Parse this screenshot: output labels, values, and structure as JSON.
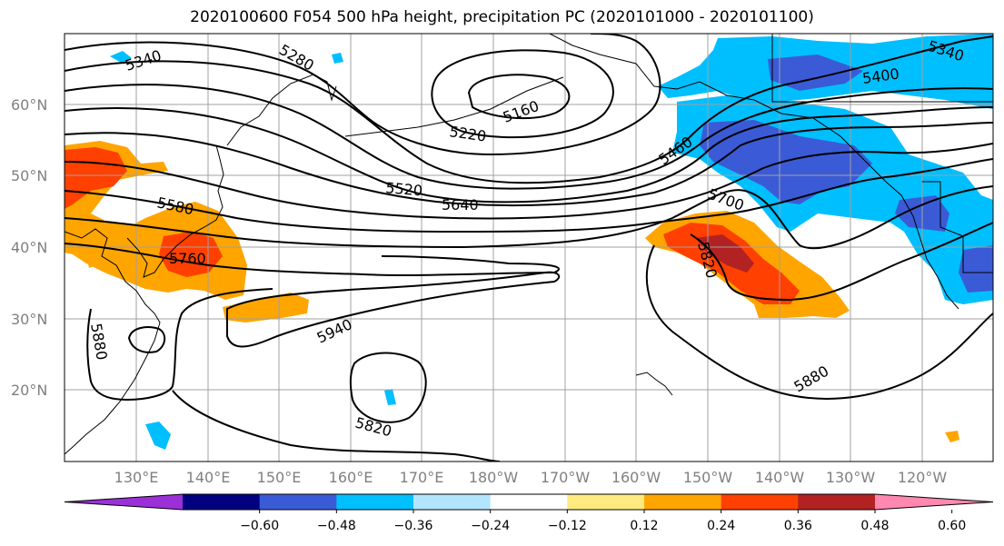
{
  "title": "2020100600 F054 500 hPa height, precipitation PC (2020101000 - 2020101100)",
  "lat_labels": [
    "60°N",
    "50°N",
    "40°N",
    "30°N",
    "20°N"
  ],
  "lon_labels": [
    "130°E",
    "140°E",
    "150°E",
    "160°E",
    "170°E",
    "180°W",
    "170°W",
    "160°W",
    "150°W",
    "140°W",
    "130°W",
    "120°W"
  ],
  "contour_labels": [
    "5340",
    "5280",
    "5220",
    "5160",
    "5400",
    "5340",
    "5460",
    "5520",
    "5640",
    "5580",
    "5700",
    "5760",
    "5820",
    "5940",
    "5880",
    "5820",
    "5880"
  ],
  "colorbar": {
    "colors": [
      "#9b30d9",
      "#000080",
      "#3b5bd6",
      "#00bfff",
      "#b3e5ff",
      "#ffffff",
      "#ffea80",
      "#ffa500",
      "#ff4000",
      "#b22222",
      "#ff88b0"
    ],
    "tick_labels": [
      "−0.60",
      "−0.48",
      "−0.36",
      "−0.24",
      "−0.12",
      "0.12",
      "0.24",
      "0.36",
      "0.48",
      "0.60"
    ]
  }
}
